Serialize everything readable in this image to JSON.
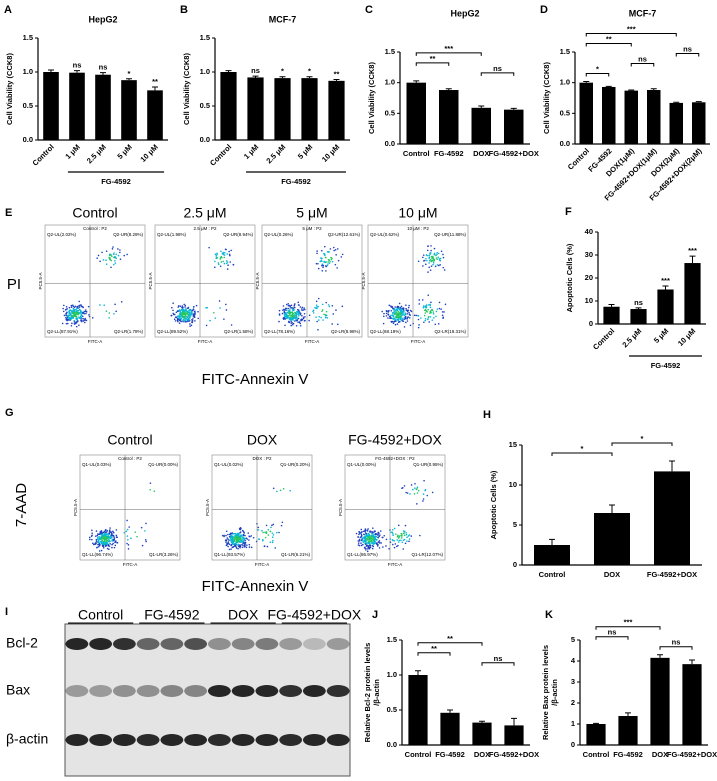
{
  "chart_data": [
    {
      "type": "bar",
      "letter": "A",
      "title": "HepG2",
      "ylabel": "Cell Viability (CCK8)",
      "categories": [
        "Control",
        "1 μM",
        "2.5 μM",
        "5 μM",
        "10 μM"
      ],
      "values": [
        1.0,
        0.99,
        0.96,
        0.88,
        0.73
      ],
      "errors": [
        0.03,
        0.03,
        0.03,
        0.02,
        0.05
      ],
      "color": "#000000",
      "ylim": [
        0,
        1.5
      ],
      "yticks": [
        {
          "value": 0,
          "label": "0.0"
        },
        0.5,
        {
          "value": 1,
          "label": "1.0"
        },
        1.5
      ],
      "sig_labels": [
        null,
        "ns",
        "ns",
        "*",
        "**"
      ],
      "group": {
        "label": "FG-4592",
        "span": [
          "1 μM",
          "10 μM"
        ]
      }
    },
    {
      "type": "bar",
      "letter": "B",
      "title": "MCF-7",
      "ylabel": "Cell Viability (CCK8)",
      "categories": [
        "Control",
        "1 μM",
        "2.5 μM",
        "5 μM",
        "10 μM"
      ],
      "values": [
        1.0,
        0.92,
        0.91,
        0.91,
        0.87
      ],
      "errors": [
        0.02,
        0.02,
        0.02,
        0.02,
        0.02
      ],
      "color": "#000000",
      "ylim": [
        0,
        1.5
      ],
      "yticks": [
        {
          "value": 0,
          "label": "0.0"
        },
        0.5,
        {
          "value": 1,
          "label": "1.0"
        },
        1.5
      ],
      "sig_labels": [
        null,
        "ns",
        "*",
        "*",
        "**"
      ],
      "group": {
        "label": "FG-4592",
        "span": [
          "1 μM",
          "10 μM"
        ]
      }
    },
    {
      "type": "bar",
      "letter": "C",
      "title": "HepG2",
      "ylabel": "Cell Viability (CCK8)",
      "categories": [
        "Control",
        "FG-4592",
        "DOX",
        "FG-4592+DOX"
      ],
      "values": [
        1.0,
        0.88,
        0.59,
        0.56
      ],
      "errors": [
        0.03,
        0.02,
        0.03,
        0.02
      ],
      "color": "#000000",
      "ylim": [
        0,
        1.5
      ],
      "yticks": [
        {
          "value": 0,
          "label": "0.0"
        },
        0.5,
        {
          "value": 1,
          "label": "1.0"
        },
        1.5
      ],
      "comparisons": [
        {
          "between": [
            "DOX",
            "FG-4592+DOX"
          ],
          "label": "ns"
        },
        {
          "between": [
            "Control",
            "FG-4592"
          ],
          "label": "**"
        },
        {
          "between": [
            "Control",
            "DOX"
          ],
          "label": "***"
        }
      ]
    },
    {
      "type": "bar",
      "letter": "D",
      "title": "MCF-7",
      "ylabel": "Cell Viability (CCK8)",
      "categories": [
        "Control",
        "FG-4592",
        "DOX(1μM)",
        "FG-4592+DOX(1μM)",
        "DOX(2μM)",
        "FG-4592+DOX(2μM)"
      ],
      "values": [
        1.0,
        0.93,
        0.87,
        0.88,
        0.67,
        0.68
      ],
      "errors": [
        0.02,
        0.01,
        0.01,
        0.02,
        0.01,
        0.01
      ],
      "color": "#000000",
      "ylim": [
        0,
        1.5
      ],
      "yticks": [
        {
          "value": 0,
          "label": "0.0"
        },
        0.5,
        {
          "value": 1,
          "label": "1.0"
        },
        1.5
      ],
      "comparisons": [
        {
          "between": [
            "Control",
            "FG-4592"
          ],
          "label": "*"
        },
        {
          "between": [
            "DOX(1μM)",
            "FG-4592+DOX(1μM)"
          ],
          "label": "ns"
        },
        {
          "between": [
            "DOX(2μM)",
            "FG-4592+DOX(2μM)"
          ],
          "label": "ns"
        },
        {
          "between": [
            "Control",
            "DOX(1μM)"
          ],
          "label": "**"
        },
        {
          "between": [
            "Control",
            "DOX(2μM)"
          ],
          "label": "***"
        }
      ]
    },
    {
      "type": "bar",
      "letter": "F",
      "ylabel": "Apoptotic Cells (%)",
      "categories": [
        "Control",
        "2.5 μM",
        "5 μM",
        "10 μM"
      ],
      "values": [
        7.5,
        6.5,
        15,
        26.5
      ],
      "errors": [
        1,
        0.5,
        1.5,
        3
      ],
      "color": "#000000",
      "ylim": [
        0,
        40
      ],
      "yticks": [
        0,
        10,
        20,
        30,
        40
      ],
      "sig_labels": [
        null,
        "ns",
        "***",
        "***"
      ],
      "group": {
        "label": "FG-4592",
        "span": [
          "2.5 μM",
          "10 μM"
        ]
      }
    },
    {
      "type": "bar",
      "letter": "H",
      "ylabel": "Apoptotic Cells (%)",
      "categories": [
        "Control",
        "DOX",
        "FG-4592+DOX"
      ],
      "values": [
        2.5,
        6.5,
        11.7
      ],
      "errors": [
        0.7,
        1,
        1.3
      ],
      "color": "#000000",
      "ylim": [
        0,
        15
      ],
      "yticks": [
        0,
        5,
        10,
        15
      ],
      "comparisons": [
        {
          "between": [
            "Control",
            "DOX"
          ],
          "label": "*"
        },
        {
          "between": [
            "DOX",
            "FG-4592+DOX"
          ],
          "label": "*"
        }
      ]
    },
    {
      "type": "bar",
      "letter": "J",
      "ylabel": [
        "Relative Bcl-2 protein levels",
        "/β-actin"
      ],
      "categories": [
        "Control",
        "FG-4592",
        "DOX",
        "FG-4592+DOX"
      ],
      "values": [
        1.0,
        0.46,
        0.32,
        0.28
      ],
      "errors": [
        0.06,
        0.04,
        0.02,
        0.1
      ],
      "color": "#000000",
      "ylim": [
        0,
        1.5
      ],
      "yticks": [
        {
          "value": 0,
          "label": "0.0"
        },
        0.5,
        {
          "value": 1,
          "label": "1.0"
        },
        1.5
      ],
      "comparisons": [
        {
          "between": [
            "DOX",
            "FG-4592+DOX"
          ],
          "label": "ns"
        },
        {
          "between": [
            "Control",
            "FG-4592"
          ],
          "label": "**"
        },
        {
          "between": [
            "Control",
            "DOX"
          ],
          "label": "**"
        }
      ]
    },
    {
      "type": "bar",
      "letter": "K",
      "ylabel": [
        "Relative Bax protein levels",
        "/β-actin"
      ],
      "categories": [
        "Control",
        "FG-4592",
        "DOX",
        "FG-4592+DOX"
      ],
      "values": [
        1.0,
        1.38,
        4.15,
        3.85
      ],
      "errors": [
        0.03,
        0.15,
        0.15,
        0.2
      ],
      "color": "#000000",
      "ylim": [
        0,
        5
      ],
      "yticks": [
        0,
        1,
        2,
        3,
        4,
        5
      ],
      "comparisons": [
        {
          "between": [
            "DOX",
            "FG-4592+DOX"
          ],
          "label": "ns"
        },
        {
          "between": [
            "Control",
            "FG-4592"
          ],
          "label": "ns"
        },
        {
          "between": [
            "Control",
            "DOX"
          ],
          "label": "***"
        }
      ]
    }
  ],
  "flow_panels": [
    {
      "letter": "E",
      "columns": [
        "Control",
        "2.5 μM",
        "5 μM",
        "10 μM"
      ],
      "y_label": "PI",
      "x_label": "FITC-Annexin V",
      "plot_x_axis": "FITC-A",
      "plot_y_axis": "PC5.5-A",
      "plots": [
        {
          "title": "Control : P2",
          "ul": "Q2-UL(2.02%)",
          "ur": "Q2-UR(8.29%)",
          "ll": "Q2-LL(87.91%)",
          "lr": "Q2-LR(1.78%)"
        },
        {
          "title": "2.5 μM : P2",
          "ul": "Q2-UL(1.98%)",
          "ur": "Q2-UR(8.94%)",
          "ll": "Q2-LL(89.52%)",
          "lr": "Q2-LR(1.58%)"
        },
        {
          "title": "5 μM : P2",
          "ul": "Q2-UL(0.26%)",
          "ur": "Q2-UR(12.61%)",
          "ll": "Q2-LL(78.16%)",
          "lr": "Q2-LR(8.98%)"
        },
        {
          "title": "10 μM : P2",
          "ul": "Q2-UL(0.62%)",
          "ur": "Q2-UR(11.88%)",
          "ll": "Q2-LL(68.19%)",
          "lr": "Q2-LR(19.31%)"
        }
      ]
    },
    {
      "letter": "G",
      "columns": [
        "Control",
        "DOX",
        "FG-4592+DOX"
      ],
      "y_label": "7-AAD",
      "x_label": "FITC-Annexin V",
      "plot_x_axis": "FITC-A",
      "plot_y_axis": "PC5.5-A",
      "plots": [
        {
          "title": "Control : P2",
          "ul": "Q1-UL(0.03%)",
          "ur": "Q1-UR(0.00%)",
          "ll": "Q1-LL(96.74%)",
          "lr": "Q1-LR(3.26%)"
        },
        {
          "title": "DOX : P2",
          "ul": "Q1-UL(0.02%)",
          "ur": "Q1-UR(0.20%)",
          "ll": "Q1-LL(93.57%)",
          "lr": "Q1-LR(6.21%)"
        },
        {
          "title": "FG-4592+DOX : P2",
          "ul": "Q1-UL(0.00%)",
          "ur": "Q1-UR(0.95%)",
          "ll": "Q1-LL(86.97%)",
          "lr": "Q1-LR(12.07%)"
        }
      ]
    }
  ],
  "blot": {
    "letter": "I",
    "groups": [
      "Control",
      "FG-4592",
      "DOX",
      "FG-4592+DOX"
    ],
    "rows": [
      "Bcl-2",
      "Bax",
      "β-actin"
    ]
  }
}
